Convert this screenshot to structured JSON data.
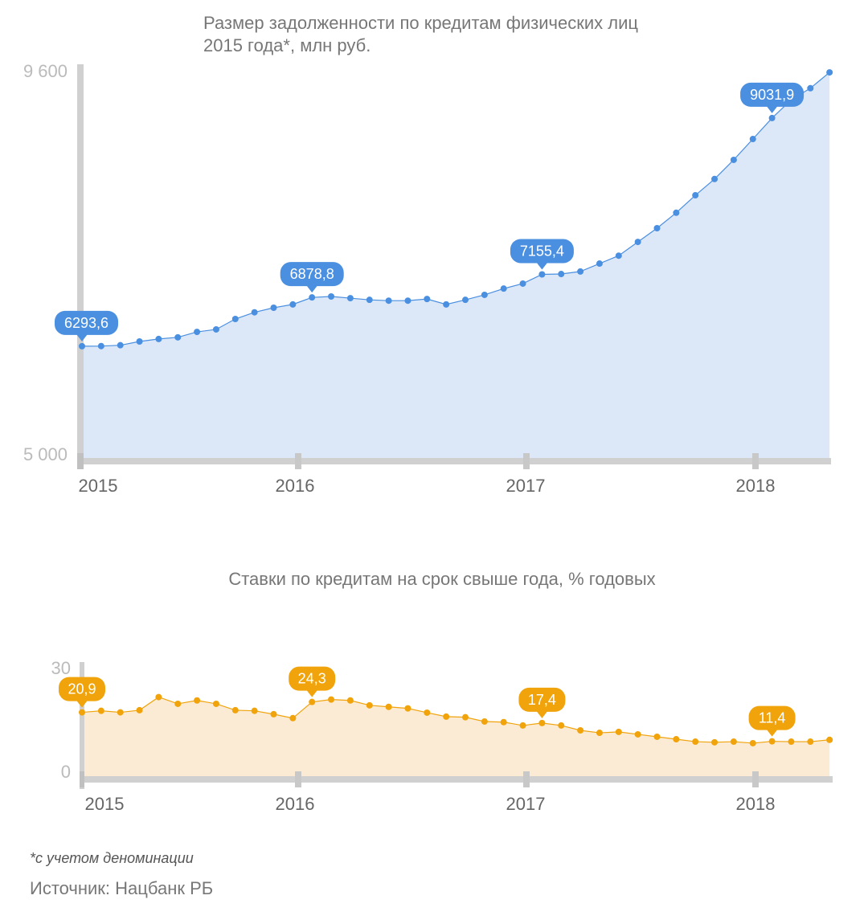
{
  "chart_data": [
    {
      "type": "area",
      "title": "Размер задолженности по кредитам физических лиц",
      "title_line2": "2015 года*, млн руб.",
      "xlabel": "",
      "ylabel": "",
      "ylim": [
        5000,
        9600
      ],
      "y_tick_labels": [
        "9 600",
        "5 000"
      ],
      "x_tick_labels": [
        "2015",
        "2016",
        "2017",
        "2018"
      ],
      "x_period": "monthly, Jan 2015 – Apr 2018",
      "color": "#4a8fe0",
      "fill": "#dce8f8",
      "values": [
        6293.6,
        6295,
        6305,
        6350,
        6380,
        6400,
        6465,
        6495,
        6620,
        6700,
        6755,
        6795,
        6878.8,
        6890,
        6870,
        6850,
        6840,
        6840,
        6860,
        6795,
        6850,
        6910,
        6985,
        7045,
        7155.4,
        7160,
        7190,
        7285,
        7380,
        7545,
        7710,
        7895,
        8105,
        8300,
        8530,
        8780,
        9031.9,
        9250,
        9390,
        9580
      ],
      "callouts": [
        {
          "index": 0,
          "label": "6293,6"
        },
        {
          "index": 12,
          "label": "6878,8"
        },
        {
          "index": 24,
          "label": "7155,4"
        },
        {
          "index": 36,
          "label": "9031,9"
        }
      ]
    },
    {
      "type": "area",
      "title": "Ставки по кредитам на срок свыше года, % годовых",
      "xlabel": "",
      "ylabel": "",
      "ylim": [
        0,
        30
      ],
      "y_tick_labels": [
        "30",
        "0"
      ],
      "x_tick_labels": [
        "2015",
        "2016",
        "2017",
        "2018"
      ],
      "x_period": "monthly, Jan 2015 – Apr 2018",
      "color": "#f0a30a",
      "fill": "#fcebd4",
      "values": [
        20.9,
        21.4,
        20.9,
        21.6,
        25.9,
        23.7,
        24.8,
        23.7,
        21.6,
        21.4,
        20.3,
        19.0,
        24.3,
        25.1,
        24.8,
        23.2,
        22.7,
        22.2,
        20.8,
        19.5,
        19.3,
        17.9,
        17.7,
        16.6,
        17.4,
        16.6,
        15.0,
        14.2,
        14.5,
        13.7,
        12.9,
        12.1,
        11.3,
        11.1,
        11.3,
        10.8,
        11.4,
        11.3,
        11.3,
        11.9
      ],
      "callouts": [
        {
          "index": 0,
          "label": "20,9"
        },
        {
          "index": 12,
          "label": "24,3"
        },
        {
          "index": 24,
          "label": "17,4"
        },
        {
          "index": 36,
          "label": "11,4"
        }
      ]
    }
  ],
  "footnote": "*с учетом деноминации",
  "source": "Источник: Нацбанк РБ"
}
